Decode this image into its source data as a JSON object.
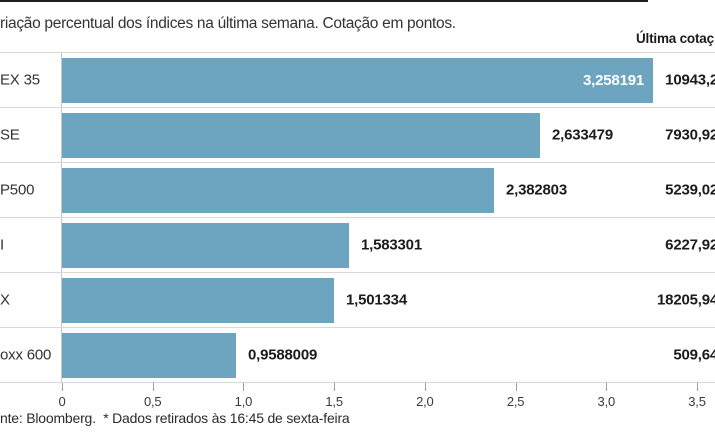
{
  "chart_data": {
    "type": "bar",
    "orientation": "horizontal",
    "title": "riação percentual dos índices na última semana. Cotação em pontos.",
    "right_column_header": "Última cotaç",
    "categories": [
      "EX 35",
      "SE",
      "P500",
      "I",
      "X",
      "oxx 600"
    ],
    "series": [
      {
        "name": "variação percentual",
        "values": [
          3.258191,
          2.633479,
          2.382803,
          1.583301,
          1.501334,
          0.9588009
        ]
      }
    ],
    "value_labels": [
      "3,258191",
      "2,633479",
      "2,382803",
      "1,583301",
      "1,501334",
      "0,9588009"
    ],
    "last_quote_labels": [
      "10943,2",
      "7930,92",
      "5239,02",
      "6227,92",
      "18205,94",
      "509,64"
    ],
    "x_tick_labels": [
      "0",
      "0,5",
      "1,0",
      "1,5",
      "2,0",
      "2,5",
      "3,0",
      "3,5"
    ],
    "xlim": [
      0,
      3.5
    ],
    "grid": false,
    "legend": "none",
    "source_note": "nte: Bloomberg.  * Dados retirados às 16:45 de sexta-feira",
    "colors": {
      "bar": "#6da5c0",
      "bar_label_inside": "#ffffff",
      "text": "#333333",
      "separator": "#d8d8d8",
      "axis_line": "#c6c6c6"
    }
  }
}
